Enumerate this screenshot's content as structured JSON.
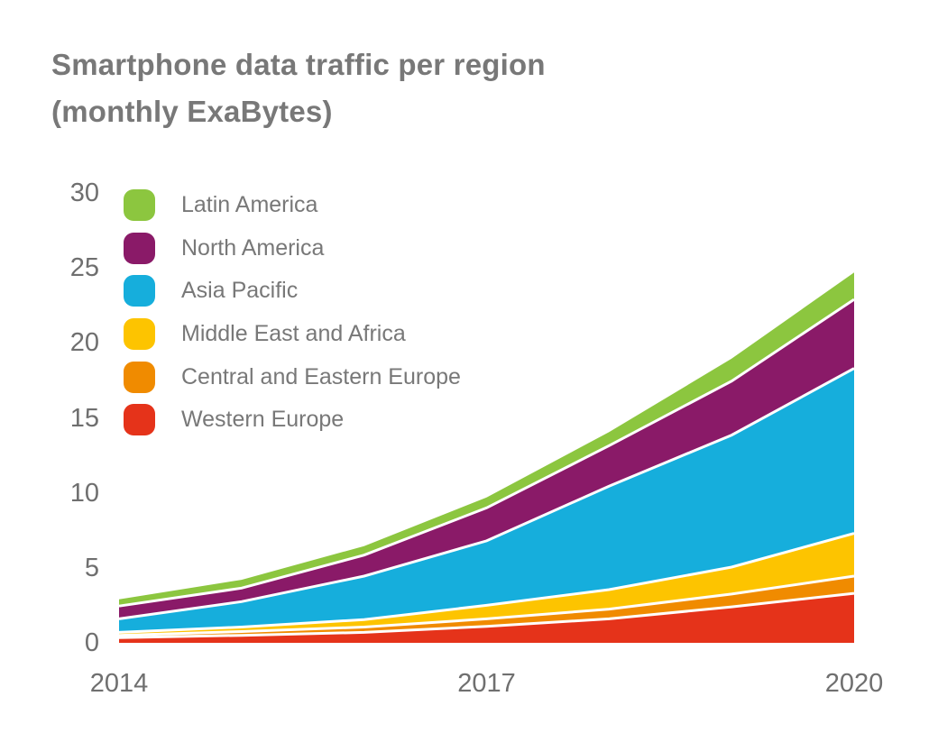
{
  "title": {
    "line1": "Smartphone data traffic per region",
    "line2": "(monthly ExaBytes)"
  },
  "colors": {
    "title_text": "#787878",
    "axis_text": "#6f6f6f",
    "band_separator": "#ffffff",
    "background": "#ffffff"
  },
  "chart_data": {
    "type": "area",
    "stacked": true,
    "title": "Smartphone data traffic per region (monthly ExaBytes)",
    "xlabel": "",
    "ylabel": "monthly ExaBytes",
    "x": [
      2014,
      2015,
      2016,
      2017,
      2018,
      2019,
      2020
    ],
    "x_tick_labels": [
      "2014",
      "2017",
      "2020"
    ],
    "x_tick_values": [
      2014,
      2017,
      2020
    ],
    "y_ticks": [
      0,
      5,
      10,
      15,
      20,
      25,
      30
    ],
    "ylim": [
      0,
      30
    ],
    "xlim": [
      2014,
      2020
    ],
    "grid": false,
    "legend_position": "top-left-overlay",
    "legend_order": "top_of_stack_first",
    "series": [
      {
        "name": "Western Europe",
        "color": "#e5331a",
        "values": [
          0.35,
          0.5,
          0.7,
          1.1,
          1.6,
          2.4,
          3.3
        ]
      },
      {
        "name": "Central and Eastern Europe",
        "color": "#f08b00",
        "values": [
          0.15,
          0.25,
          0.35,
          0.5,
          0.65,
          0.85,
          1.15
        ]
      },
      {
        "name": "Middle East and Africa",
        "color": "#fdc400",
        "values": [
          0.2,
          0.3,
          0.5,
          0.9,
          1.3,
          1.8,
          2.85
        ]
      },
      {
        "name": "Asia Pacific",
        "color": "#16aedc",
        "values": [
          0.9,
          1.7,
          2.9,
          4.3,
          6.9,
          8.8,
          11.0
        ]
      },
      {
        "name": "North America",
        "color": "#8a1a68",
        "values": [
          0.85,
          0.9,
          1.4,
          2.2,
          2.7,
          3.6,
          4.6
        ]
      },
      {
        "name": "Latin America",
        "color": "#8cc63f",
        "values": [
          0.45,
          0.55,
          0.6,
          0.7,
          0.9,
          1.5,
          1.8
        ]
      }
    ]
  }
}
